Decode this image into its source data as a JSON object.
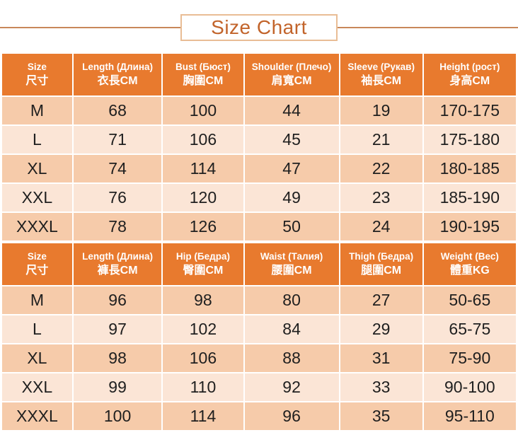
{
  "title": "Size Chart",
  "colors": {
    "header_bg": "#e87a2e",
    "row_dark": "#f6cbaa",
    "row_light": "#fbe5d6",
    "title_text": "#c2642b",
    "title_box_border": "#e9bd95",
    "band_line": "#c8875a",
    "cell_text": "#1f1f1f",
    "header_text": "#ffffff"
  },
  "tables": [
    {
      "id": "tops",
      "headers": [
        {
          "en": "Size",
          "zh": "尺寸"
        },
        {
          "en": "Length (Длина)",
          "zh": "衣長CM"
        },
        {
          "en": "Bust (Бюст)",
          "zh": "胸圍CM"
        },
        {
          "en": "Shoulder (Плечо)",
          "zh": "肩寬CM"
        },
        {
          "en": "Sleeve (Рукав)",
          "zh": "袖長CM"
        },
        {
          "en": "Height (рост)",
          "zh": "身高CM"
        }
      ],
      "rows": [
        [
          "M",
          "68",
          "100",
          "44",
          "19",
          "170-175"
        ],
        [
          "L",
          "71",
          "106",
          "45",
          "21",
          "175-180"
        ],
        [
          "XL",
          "74",
          "114",
          "47",
          "22",
          "180-185"
        ],
        [
          "XXL",
          "76",
          "120",
          "49",
          "23",
          "185-190"
        ],
        [
          "XXXL",
          "78",
          "126",
          "50",
          "24",
          "190-195"
        ]
      ]
    },
    {
      "id": "bottoms",
      "headers": [
        {
          "en": "Size",
          "zh": "尺寸"
        },
        {
          "en": "Length (Длина)",
          "zh": "褲長CM"
        },
        {
          "en": "Hip (Бедра)",
          "zh": "臀圍CM"
        },
        {
          "en": "Waist (Талия)",
          "zh": "腰圍CM"
        },
        {
          "en": "Thigh (Бедра)",
          "zh": "腿圍CM"
        },
        {
          "en": "Weight (Вес)",
          "zh": "體重KG"
        }
      ],
      "rows": [
        [
          "M",
          "96",
          "98",
          "80",
          "27",
          "50-65"
        ],
        [
          "L",
          "97",
          "102",
          "84",
          "29",
          "65-75"
        ],
        [
          "XL",
          "98",
          "106",
          "88",
          "31",
          "75-90"
        ],
        [
          "XXL",
          "99",
          "110",
          "92",
          "33",
          "90-100"
        ],
        [
          "XXXL",
          "100",
          "114",
          "96",
          "35",
          "95-110"
        ]
      ]
    }
  ]
}
